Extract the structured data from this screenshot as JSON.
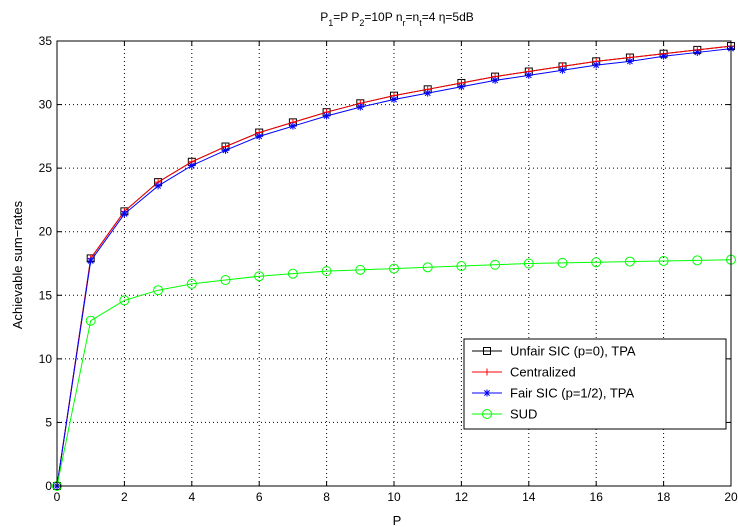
{
  "chart_data": {
    "type": "line",
    "title_parts": [
      {
        "t": "P",
        "sub": false
      },
      {
        "t": "1",
        "sub": true
      },
      {
        "t": "=P P",
        "sub": false
      },
      {
        "t": "2",
        "sub": true
      },
      {
        "t": "=10P n",
        "sub": false
      },
      {
        "t": "r",
        "sub": true
      },
      {
        "t": "=n",
        "sub": false
      },
      {
        "t": "t",
        "sub": true
      },
      {
        "t": "=4 η=5dB",
        "sub": false
      }
    ],
    "xlabel": "P",
    "ylabel": "Achievable sum−rates",
    "xlim": [
      0,
      20
    ],
    "ylim": [
      0,
      35
    ],
    "xticks": [
      0,
      2,
      4,
      6,
      8,
      10,
      12,
      14,
      16,
      18,
      20
    ],
    "yticks": [
      0,
      5,
      10,
      15,
      20,
      25,
      30,
      35
    ],
    "grid": true,
    "legend_position": "bottom-right",
    "x": [
      0,
      1,
      2,
      3,
      4,
      5,
      6,
      7,
      8,
      9,
      10,
      11,
      12,
      13,
      14,
      15,
      16,
      17,
      18,
      19,
      20
    ],
    "series": [
      {
        "name": "Unfair SIC (p=0), TPA",
        "color": "#000000",
        "marker": "square",
        "values": [
          0,
          17.9,
          21.6,
          23.9,
          25.5,
          26.7,
          27.8,
          28.6,
          29.4,
          30.1,
          30.7,
          31.2,
          31.7,
          32.2,
          32.6,
          33.0,
          33.4,
          33.7,
          34.0,
          34.3,
          34.6
        ]
      },
      {
        "name": "Centralized",
        "color": "#ff0000",
        "marker": "plus",
        "values": [
          0,
          17.9,
          21.6,
          23.9,
          25.5,
          26.7,
          27.8,
          28.6,
          29.4,
          30.1,
          30.7,
          31.2,
          31.7,
          32.2,
          32.6,
          33.0,
          33.4,
          33.7,
          34.0,
          34.3,
          34.6
        ]
      },
      {
        "name": "Fair SIC (p=1/2), TPA",
        "color": "#0000ff",
        "marker": "star",
        "values": [
          0,
          17.7,
          21.4,
          23.6,
          25.2,
          26.4,
          27.5,
          28.3,
          29.1,
          29.8,
          30.4,
          30.9,
          31.4,
          31.9,
          32.3,
          32.7,
          33.1,
          33.4,
          33.8,
          34.1,
          34.4
        ]
      },
      {
        "name": "SUD",
        "color": "#00ff00",
        "marker": "circle",
        "values": [
          0,
          13.0,
          14.6,
          15.4,
          15.9,
          16.2,
          16.5,
          16.7,
          16.9,
          17.0,
          17.1,
          17.2,
          17.3,
          17.4,
          17.5,
          17.55,
          17.6,
          17.65,
          17.7,
          17.75,
          17.8
        ]
      }
    ]
  }
}
